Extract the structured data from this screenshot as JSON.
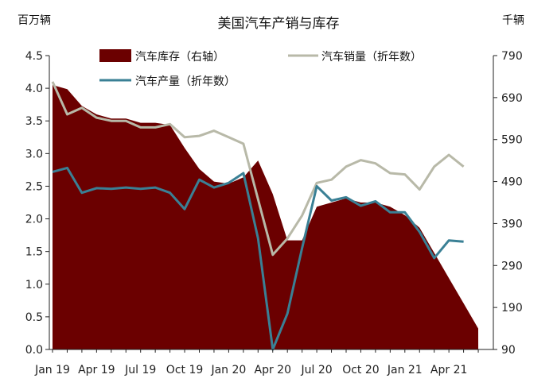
{
  "chart_data": {
    "type": "line",
    "title": "美国汽车产销与库存",
    "left_unit": "百万辆",
    "right_unit": "千辆",
    "x_tick_labels": [
      "Jan 19",
      "Apr 19",
      "Jul 19",
      "Oct 19",
      "Jan 20",
      "Apr 20",
      "Jul 20",
      "Oct 20",
      "Jan 21",
      "Apr 21"
    ],
    "x": [
      "2019-01",
      "2019-02",
      "2019-03",
      "2019-04",
      "2019-05",
      "2019-06",
      "2019-07",
      "2019-08",
      "2019-09",
      "2019-10",
      "2019-11",
      "2019-12",
      "2020-01",
      "2020-02",
      "2020-03",
      "2020-04",
      "2020-05",
      "2020-06",
      "2020-07",
      "2020-08",
      "2020-09",
      "2020-10",
      "2020-11",
      "2020-12",
      "2021-01",
      "2021-02",
      "2021-03",
      "2021-04",
      "2021-05",
      "2021-06"
    ],
    "left_axis": {
      "min": 0,
      "max": 4.5,
      "ticks": [
        "0.0",
        "0.5",
        "1.0",
        "1.5",
        "2.0",
        "2.5",
        "3.0",
        "3.5",
        "4.0",
        "4.5"
      ]
    },
    "right_axis": {
      "min": 90,
      "max": 790,
      "ticks": [
        "90",
        "190",
        "290",
        "390",
        "490",
        "590",
        "690",
        "790"
      ]
    },
    "grid": false,
    "legend_position": "top",
    "series": [
      {
        "name": "汽车库存（右轴）",
        "kind": "area",
        "axis": "right",
        "color": "#6b0000",
        "values": [
          720,
          710,
          670,
          650,
          640,
          640,
          630,
          630,
          625,
          570,
          520,
          490,
          485,
          500,
          540,
          460,
          350,
          350,
          430,
          440,
          450,
          440,
          440,
          430,
          410,
          380,
          320,
          260,
          200,
          140
        ]
      },
      {
        "name": "汽车销量（折年数）",
        "kind": "line",
        "axis": "left",
        "color": "#b8b9a8",
        "values": [
          4.1,
          3.6,
          3.7,
          3.55,
          3.5,
          3.5,
          3.4,
          3.4,
          3.45,
          3.25,
          3.27,
          3.35,
          3.25,
          3.15,
          2.3,
          1.45,
          1.7,
          2.05,
          2.55,
          2.6,
          2.8,
          2.9,
          2.85,
          2.7,
          2.68,
          2.45,
          2.8,
          2.98,
          2.8,
          null
        ]
      },
      {
        "name": "汽车产量（折年数）",
        "kind": "line",
        "axis": "left",
        "color": "#3a8095",
        "values": [
          2.72,
          2.78,
          2.4,
          2.47,
          2.46,
          2.48,
          2.46,
          2.48,
          2.4,
          2.15,
          2.6,
          2.48,
          2.55,
          2.7,
          1.7,
          0.0,
          0.55,
          1.55,
          2.5,
          2.28,
          2.33,
          2.2,
          2.27,
          2.1,
          2.1,
          1.8,
          1.4,
          1.67,
          1.65,
          null
        ]
      }
    ]
  }
}
